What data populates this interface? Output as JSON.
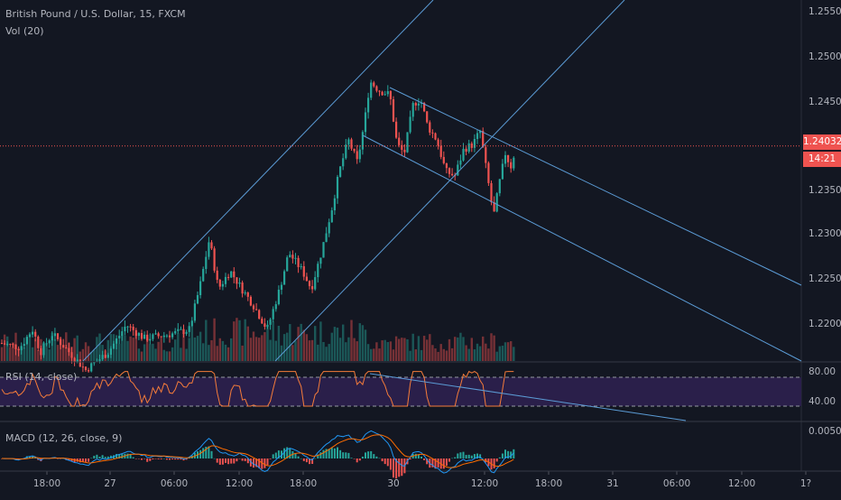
{
  "legend": {
    "main": "British Pound / U.S. Dollar, 15, FXCM",
    "volume": "Vol (20)",
    "rsi": "RSI (14, close)",
    "macd": "MACD (12, 26, close, 9)"
  },
  "price_axis": {
    "labels": [
      "1.25500",
      "1.25000",
      "1.24500",
      "1.23500",
      "1.23000",
      "1.22500",
      "1.22000"
    ],
    "current_price": "1.24032",
    "countdown": "14:21"
  },
  "rsi_axis": {
    "labels": [
      "80.00",
      "40.00"
    ]
  },
  "macd_axis": {
    "labels": [
      "0.00500"
    ]
  },
  "time_axis": {
    "labels": [
      "18:00",
      "27",
      "06:00",
      "12:00",
      "18:00",
      "30",
      "12:00",
      "18:00",
      "31",
      "06:00",
      "12:00",
      "1?"
    ]
  },
  "colors": {
    "background": "#131722",
    "up": "#26a69a",
    "down": "#ef5350",
    "trendline": "#5b9bd5",
    "current_price_line": "#ef5350",
    "rsi_band": "#2a1f4a",
    "rsi_line": "#f57c3a",
    "macd_line": "#2196f3",
    "signal_line": "#ff6d00"
  },
  "chart_data": {
    "type": "candlestick",
    "symbol": "British Pound / U.S. Dollar",
    "interval": "15",
    "source": "FXCM",
    "current_price": 1.24032,
    "price_range": [
      1.2165,
      1.2565
    ],
    "key_closes": [
      {
        "x": "26 16:00",
        "price": 1.219
      },
      {
        "x": "27 08:00",
        "price": 1.2305
      },
      {
        "x": "27 16:00",
        "price": 1.226
      },
      {
        "x": "28 00:00",
        "price": 1.2365
      },
      {
        "x": "28 04:00",
        "price": 1.2475
      },
      {
        "x": "30 06:00",
        "price": 1.2395
      },
      {
        "x": "30 09:00",
        "price": 1.236
      },
      {
        "x": "30 12:00",
        "price": 1.242
      },
      {
        "x": "30 13:30",
        "price": 1.2325
      },
      {
        "x": "30 15:00",
        "price": 1.2403
      }
    ],
    "rsi": {
      "levels": [
        70,
        30
      ],
      "axis_labels": [
        80,
        40
      ]
    },
    "macd": {
      "fast": 12,
      "slow": 26,
      "signal": 9
    }
  }
}
